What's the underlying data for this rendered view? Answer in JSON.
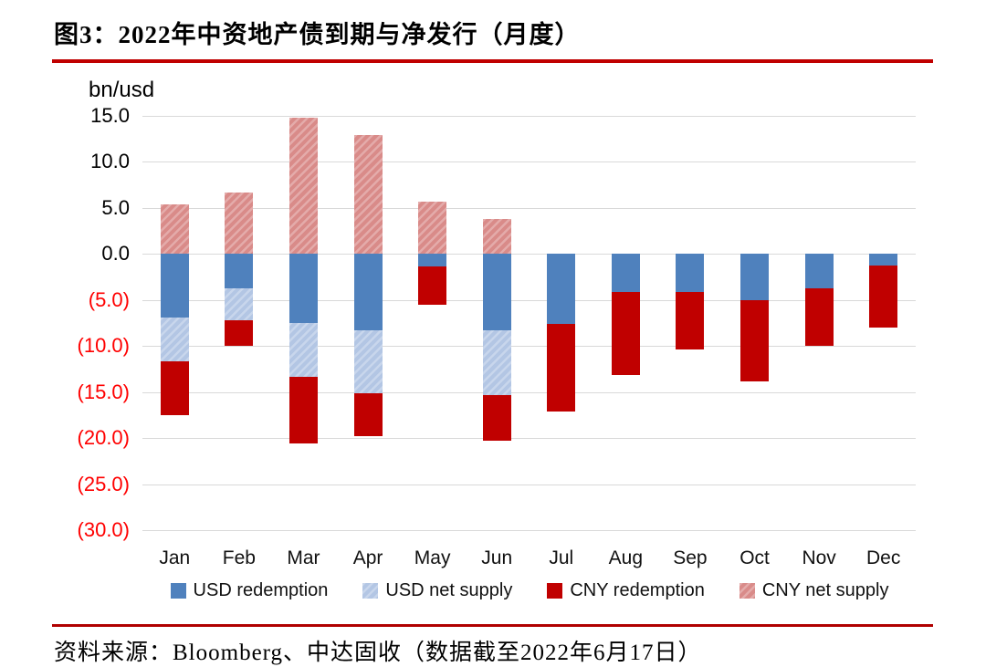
{
  "title": "图3：2022年中资地产债到期与净发行（月度）",
  "source_note": "资料来源：Bloomberg、中达固收（数据截至2022年6月17日）",
  "colors": {
    "top_rule": "#c00000",
    "bottom_rule": "#b00000",
    "gridline": "#d9d9d9",
    "negative_tick_text": "#ff0000",
    "usd_redemption": "#4f81bd",
    "usd_net_supply": "#b3c6e4",
    "cny_redemption": "#c00000",
    "cny_net_supply": "#d98b89"
  },
  "chart_data": {
    "type": "bar",
    "stacked": true,
    "title": "图3：2022年中资地产债到期与净发行（月度）",
    "ylabel": "bn/usd",
    "xlabel": "",
    "ylim": [
      -30,
      15
    ],
    "ytick_step": 5,
    "grid": true,
    "legend_position": "bottom",
    "yticks": [
      {
        "value": 15,
        "label": "15.0"
      },
      {
        "value": 10,
        "label": "10.0"
      },
      {
        "value": 5,
        "label": "5.0"
      },
      {
        "value": 0,
        "label": "0.0"
      },
      {
        "value": -5,
        "label": "(5.0)"
      },
      {
        "value": -10,
        "label": "(10.0)"
      },
      {
        "value": -15,
        "label": "(15.0)"
      },
      {
        "value": -20,
        "label": "(20.0)"
      },
      {
        "value": -25,
        "label": "(25.0)"
      },
      {
        "value": -30,
        "label": "(30.0)"
      }
    ],
    "categories": [
      "Jan",
      "Feb",
      "Mar",
      "Apr",
      "May",
      "Jun",
      "Jul",
      "Aug",
      "Sep",
      "Oct",
      "Nov",
      "Dec"
    ],
    "series": [
      {
        "name": "USD redemption",
        "color": "#4f81bd",
        "hatch": false,
        "values": [
          -6.9,
          -3.7,
          -7.5,
          -8.3,
          -1.4,
          -8.3,
          -7.6,
          -4.1,
          -4.1,
          -5.0,
          -3.7,
          -1.3
        ]
      },
      {
        "name": "USD net supply",
        "color": "#b3c6e4",
        "hatch": true,
        "values": [
          -4.8,
          -3.5,
          -5.8,
          -6.8,
          0,
          -7.0,
          0,
          0,
          0,
          0,
          0,
          0
        ]
      },
      {
        "name": "CNY redemption",
        "color": "#c00000",
        "hatch": false,
        "values": [
          -5.8,
          -2.8,
          -7.3,
          -4.7,
          -4.1,
          -5.0,
          -9.5,
          -9.1,
          -6.3,
          -8.8,
          -6.3,
          -6.7
        ]
      },
      {
        "name": "CNY net supply",
        "color": "#d98b89",
        "hatch": true,
        "values": [
          5.4,
          6.7,
          14.8,
          12.9,
          5.7,
          3.8,
          0,
          0,
          0,
          0,
          0,
          0
        ]
      }
    ]
  }
}
